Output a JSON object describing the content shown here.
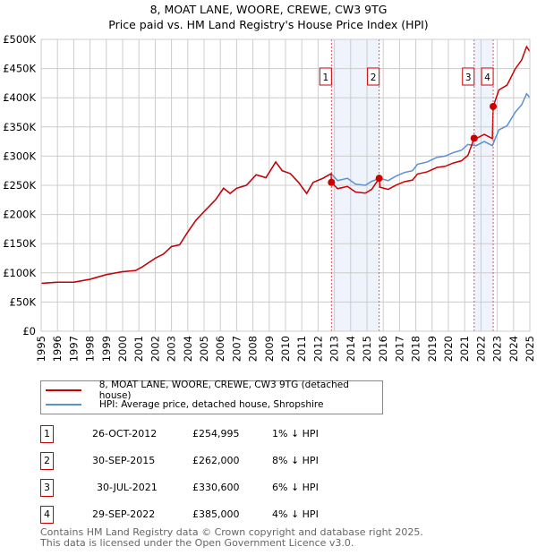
{
  "chart_data": {
    "type": "line",
    "title": "8, MOAT LANE, WOORE, CREWE, CW3 9TG",
    "subtitle": "Price paid vs. HM Land Registry's House Price Index (HPI)",
    "xlim": [
      1995,
      2025
    ],
    "ylim": [
      0,
      500000
    ],
    "x_ticks": [
      "1995",
      "1996",
      "1997",
      "1998",
      "1999",
      "2000",
      "2001",
      "2002",
      "2003",
      "2004",
      "2005",
      "2006",
      "2007",
      "2008",
      "2009",
      "2010",
      "2011",
      "2012",
      "2013",
      "2014",
      "2015",
      "2016",
      "2017",
      "2018",
      "2019",
      "2020",
      "2021",
      "2022",
      "2023",
      "2024",
      "2025"
    ],
    "y_ticks": [
      {
        "v": 0,
        "l": "£0"
      },
      {
        "v": 50000,
        "l": "£50K"
      },
      {
        "v": 100000,
        "l": "£100K"
      },
      {
        "v": 150000,
        "l": "£150K"
      },
      {
        "v": 200000,
        "l": "£200K"
      },
      {
        "v": 250000,
        "l": "£250K"
      },
      {
        "v": 300000,
        "l": "£300K"
      },
      {
        "v": 350000,
        "l": "£350K"
      },
      {
        "v": 400000,
        "l": "£400K"
      },
      {
        "v": 450000,
        "l": "£450K"
      },
      {
        "v": 500000,
        "l": "£500K"
      }
    ],
    "grid": true,
    "series": [
      {
        "name": "HPI: Average price, detached house, Shropshire",
        "color": "#5b8fd4",
        "points": [
          [
            1995,
            82000
          ],
          [
            1996,
            84000
          ],
          [
            1997,
            84000
          ],
          [
            1998,
            89000
          ],
          [
            1999,
            97000
          ],
          [
            2000,
            102000
          ],
          [
            2000.8,
            104000
          ],
          [
            2001.2,
            110000
          ],
          [
            2002,
            125000
          ],
          [
            2002.5,
            132000
          ],
          [
            2003,
            145000
          ],
          [
            2003.5,
            148000
          ],
          [
            2004,
            170000
          ],
          [
            2004.5,
            190000
          ],
          [
            2005,
            205000
          ],
          [
            2005.7,
            225000
          ],
          [
            2006.2,
            245000
          ],
          [
            2006.6,
            236000
          ],
          [
            2007,
            245000
          ],
          [
            2007.6,
            250000
          ],
          [
            2008.2,
            268000
          ],
          [
            2008.8,
            263000
          ],
          [
            2009.4,
            290000
          ],
          [
            2009.8,
            275000
          ],
          [
            2010.3,
            270000
          ],
          [
            2010.8,
            255000
          ],
          [
            2011.3,
            236000
          ],
          [
            2011.7,
            255000
          ],
          [
            2012.3,
            262000
          ],
          [
            2012.8,
            270000
          ],
          [
            2013.2,
            258000
          ],
          [
            2013.8,
            262000
          ],
          [
            2014.3,
            252000
          ],
          [
            2014.9,
            250000
          ],
          [
            2015.3,
            257000
          ],
          [
            2015.8,
            262000
          ],
          [
            2016.3,
            258000
          ],
          [
            2016.8,
            266000
          ],
          [
            2017.3,
            272000
          ],
          [
            2017.8,
            275000
          ],
          [
            2018.1,
            286000
          ],
          [
            2018.7,
            290000
          ],
          [
            2019.3,
            298000
          ],
          [
            2019.8,
            300000
          ],
          [
            2020.3,
            306000
          ],
          [
            2020.8,
            310000
          ],
          [
            2021.2,
            320000
          ],
          [
            2021.7,
            318000
          ],
          [
            2022.2,
            325000
          ],
          [
            2022.7,
            318000
          ],
          [
            2023.1,
            345000
          ],
          [
            2023.6,
            352000
          ],
          [
            2024.1,
            375000
          ],
          [
            2024.5,
            388000
          ],
          [
            2024.8,
            407000
          ],
          [
            2025,
            400000
          ]
        ]
      },
      {
        "name": "8, MOAT LANE, WOORE, CREWE, CW3 9TG (detached house)",
        "color": "#cc0000",
        "points": []
      }
    ],
    "sales": [
      {
        "id": "1",
        "x": 2012.82,
        "date": "26-OCT-2012",
        "price": "£254,995",
        "value": 254995,
        "hpi": "1% ↓ HPI"
      },
      {
        "id": "2",
        "x": 2015.75,
        "date": "30-SEP-2015",
        "price": "£262,000",
        "value": 262000,
        "hpi": "8% ↓ HPI"
      },
      {
        "id": "3",
        "x": 2021.58,
        "date": "30-JUL-2021",
        "price": "£330,600",
        "value": 330600,
        "hpi": "6% ↓ HPI"
      },
      {
        "id": "4",
        "x": 2022.75,
        "date": "29-SEP-2022",
        "price": "£385,000",
        "value": 385000,
        "hpi": "4% ↓ HPI"
      }
    ]
  },
  "footer": {
    "line1": "Contains HM Land Registry data © Crown copyright and database right 2025.",
    "line2": "This data is licensed under the Open Government Licence v3.0."
  }
}
